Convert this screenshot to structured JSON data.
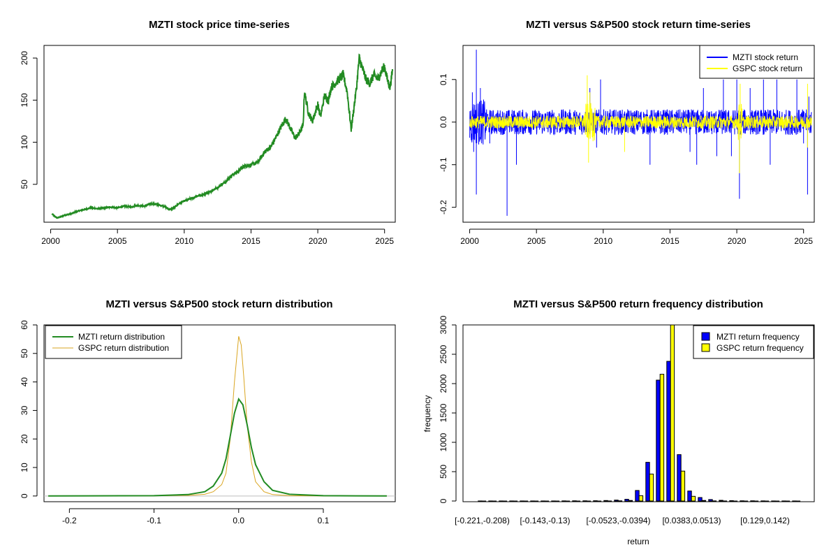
{
  "chart_data": [
    {
      "type": "line",
      "title": "MZTI stock price time-series",
      "xlabel": "",
      "ylabel": "",
      "xlim": [
        1999.5,
        2025.8
      ],
      "ylim": [
        5,
        215
      ],
      "x_ticks": [
        "2000",
        "2005",
        "2010",
        "2015",
        "2020",
        "2025"
      ],
      "y_ticks": [
        "50",
        "100",
        "150",
        "200"
      ],
      "color": "#228B22",
      "series": [
        {
          "x": [
            2000.1,
            2000.3,
            2000.5,
            2001.0,
            2001.5,
            2002.0,
            2002.5,
            2003.0,
            2003.5,
            2004.0,
            2004.5,
            2005.0,
            2005.5,
            2006.0,
            2006.5,
            2007.0,
            2007.5,
            2008.0,
            2008.5,
            2008.9,
            2009.2,
            2009.6,
            2010.0,
            2010.5,
            2011.0,
            2011.5,
            2012.0,
            2012.5,
            2013.0,
            2013.5,
            2014.0,
            2014.5,
            2015.0,
            2015.5,
            2016.0,
            2016.5,
            2017.0,
            2017.3,
            2017.6,
            2018.0,
            2018.3,
            2018.6,
            2018.9,
            2019.0,
            2019.3,
            2019.6,
            2020.0,
            2020.2,
            2020.5,
            2020.8,
            2021.0,
            2021.3,
            2021.6,
            2021.9,
            2022.2,
            2022.5,
            2022.7,
            2022.9,
            2023.1,
            2023.3,
            2023.6,
            2023.9,
            2024.2,
            2024.5,
            2024.8,
            2025.0,
            2025.2,
            2025.4,
            2025.6
          ],
          "y": [
            15,
            12,
            10,
            13,
            15,
            18,
            20,
            22,
            21,
            22,
            23,
            22,
            24,
            23,
            25,
            24,
            27,
            26,
            24,
            20,
            22,
            27,
            30,
            33,
            36,
            38,
            42,
            46,
            52,
            60,
            65,
            72,
            73,
            76,
            88,
            95,
            110,
            120,
            128,
            115,
            105,
            110,
            120,
            160,
            135,
            125,
            145,
            130,
            155,
            150,
            165,
            170,
            175,
            180,
            160,
            115,
            140,
            165,
            200,
            190,
            175,
            170,
            180,
            175,
            185,
            190,
            175,
            165,
            185
          ]
        }
      ]
    },
    {
      "type": "line",
      "title": "MZTI versus S&P500 stock return time-series",
      "xlabel": "",
      "ylabel": "",
      "xlim": [
        1999.5,
        2025.8
      ],
      "ylim": [
        -0.235,
        0.18
      ],
      "x_ticks": [
        "2000",
        "2005",
        "2010",
        "2015",
        "2020",
        "2025"
      ],
      "y_ticks": [
        "-0.2",
        "-0.1",
        "0.0",
        "0.1"
      ],
      "legend": {
        "placement": "top-right"
      },
      "series": [
        {
          "name": "MZTI stock return",
          "color": "#0000FF",
          "typical_amplitude": 0.03,
          "spikes": [
            {
              "x": 2000.2,
              "y": 0.07
            },
            {
              "x": 2000.3,
              "y": -0.07
            },
            {
              "x": 2000.5,
              "y": 0.17
            },
            {
              "x": 2000.5,
              "y": -0.17
            },
            {
              "x": 2000.8,
              "y": 0.08
            },
            {
              "x": 2001.5,
              "y": -0.05
            },
            {
              "x": 2002.8,
              "y": -0.22
            },
            {
              "x": 2003.5,
              "y": -0.1
            },
            {
              "x": 2009.0,
              "y": 0.08
            },
            {
              "x": 2009.5,
              "y": -0.06
            },
            {
              "x": 2009.8,
              "y": 0.1
            },
            {
              "x": 2013.5,
              "y": -0.1
            },
            {
              "x": 2016.5,
              "y": -0.07
            },
            {
              "x": 2017.0,
              "y": -0.1
            },
            {
              "x": 2017.5,
              "y": 0.08
            },
            {
              "x": 2018.5,
              "y": -0.08
            },
            {
              "x": 2019.0,
              "y": 0.1
            },
            {
              "x": 2019.6,
              "y": -0.08
            },
            {
              "x": 2020.0,
              "y": 0.1
            },
            {
              "x": 2020.2,
              "y": -0.18
            },
            {
              "x": 2021.0,
              "y": 0.08
            },
            {
              "x": 2022.0,
              "y": 0.1
            },
            {
              "x": 2022.5,
              "y": -0.1
            },
            {
              "x": 2023.0,
              "y": 0.1
            },
            {
              "x": 2024.5,
              "y": 0.1
            },
            {
              "x": 2025.0,
              "y": -0.05
            },
            {
              "x": 2025.3,
              "y": -0.17
            },
            {
              "x": 2025.4,
              "y": 0.06
            }
          ]
        },
        {
          "name": "GSPC stock return",
          "color": "#FFFF00",
          "typical_amplitude": 0.015,
          "spikes": [
            {
              "x": 2008.8,
              "y": 0.11
            },
            {
              "x": 2008.9,
              "y": -0.095
            },
            {
              "x": 2009.0,
              "y": 0.07
            },
            {
              "x": 2011.6,
              "y": -0.07
            },
            {
              "x": 2020.2,
              "y": -0.12
            },
            {
              "x": 2020.25,
              "y": 0.09
            },
            {
              "x": 2025.3,
              "y": 0.09
            },
            {
              "x": 2025.3,
              "y": -0.06
            }
          ]
        }
      ]
    },
    {
      "type": "line",
      "title": "MZTI versus S&P500 stock return distribution",
      "xlabel": "",
      "ylabel": "",
      "xlim": [
        -0.23,
        0.185
      ],
      "ylim": [
        -2,
        60
      ],
      "x_ticks": [
        "-0.2",
        "-0.1",
        "0.0",
        "0.1"
      ],
      "y_ticks": [
        "0",
        "10",
        "20",
        "30",
        "40",
        "50",
        "60"
      ],
      "legend": {
        "placement": "top-left"
      },
      "series": [
        {
          "name": "MZTI return distribution",
          "color": "#228B22",
          "x": [
            -0.225,
            -0.1,
            -0.06,
            -0.04,
            -0.03,
            -0.02,
            -0.015,
            -0.01,
            -0.005,
            0.0,
            0.005,
            0.01,
            0.015,
            0.02,
            0.03,
            0.04,
            0.06,
            0.1,
            0.175
          ],
          "y": [
            0,
            0.1,
            0.5,
            1.5,
            3.5,
            8,
            13,
            21,
            29,
            34,
            32,
            25,
            17,
            11,
            5,
            2,
            0.6,
            0.1,
            0
          ]
        },
        {
          "name": "GSPC return distribution",
          "color": "#DAA520",
          "x": [
            -0.225,
            -0.1,
            -0.06,
            -0.04,
            -0.03,
            -0.02,
            -0.015,
            -0.01,
            -0.005,
            0.0,
            0.003,
            0.006,
            0.01,
            0.015,
            0.02,
            0.03,
            0.04,
            0.06,
            0.1,
            0.175
          ],
          "y": [
            0,
            0.05,
            0.2,
            0.6,
            1.5,
            4,
            8,
            20,
            40,
            56,
            53,
            42,
            25,
            12,
            5,
            1.5,
            0.5,
            0.1,
            0,
            0
          ]
        }
      ]
    },
    {
      "type": "bar",
      "title": "MZTI versus S&P500 return frequency distribution",
      "xlabel": "return",
      "ylabel": "frequency",
      "ylim": [
        0,
        3000
      ],
      "y_ticks": [
        "0",
        "500",
        "1000",
        "1500",
        "2000",
        "2500",
        "3000"
      ],
      "category_tick_labels": [
        "[-0.221,-0.208)",
        "[-0.143,-0.13)",
        "[-0.0523,-0.0394)",
        "[0.0383,0.0513)",
        "[0.129,0.142)"
      ],
      "category_tick_positions": [
        0,
        6,
        13,
        20,
        27
      ],
      "category_count": 31,
      "legend": {
        "placement": "top-right"
      },
      "series": [
        {
          "name": "MZTI return frequency",
          "color": "#0000FF",
          "values": [
            1,
            1,
            1,
            1,
            1,
            1,
            1,
            1,
            2,
            3,
            3,
            5,
            8,
            15,
            30,
            180,
            660,
            2060,
            2380,
            790,
            170,
            60,
            25,
            12,
            6,
            4,
            3,
            2,
            1,
            1,
            1
          ]
        },
        {
          "name": "GSPC return frequency",
          "color": "#FFFF00",
          "values": [
            0,
            0,
            0,
            0,
            0,
            0,
            0,
            0,
            0,
            0,
            0,
            0,
            1,
            3,
            10,
            90,
            460,
            2160,
            3000,
            510,
            80,
            10,
            2,
            1,
            0,
            0,
            0,
            0,
            0,
            0,
            0
          ]
        }
      ]
    }
  ]
}
